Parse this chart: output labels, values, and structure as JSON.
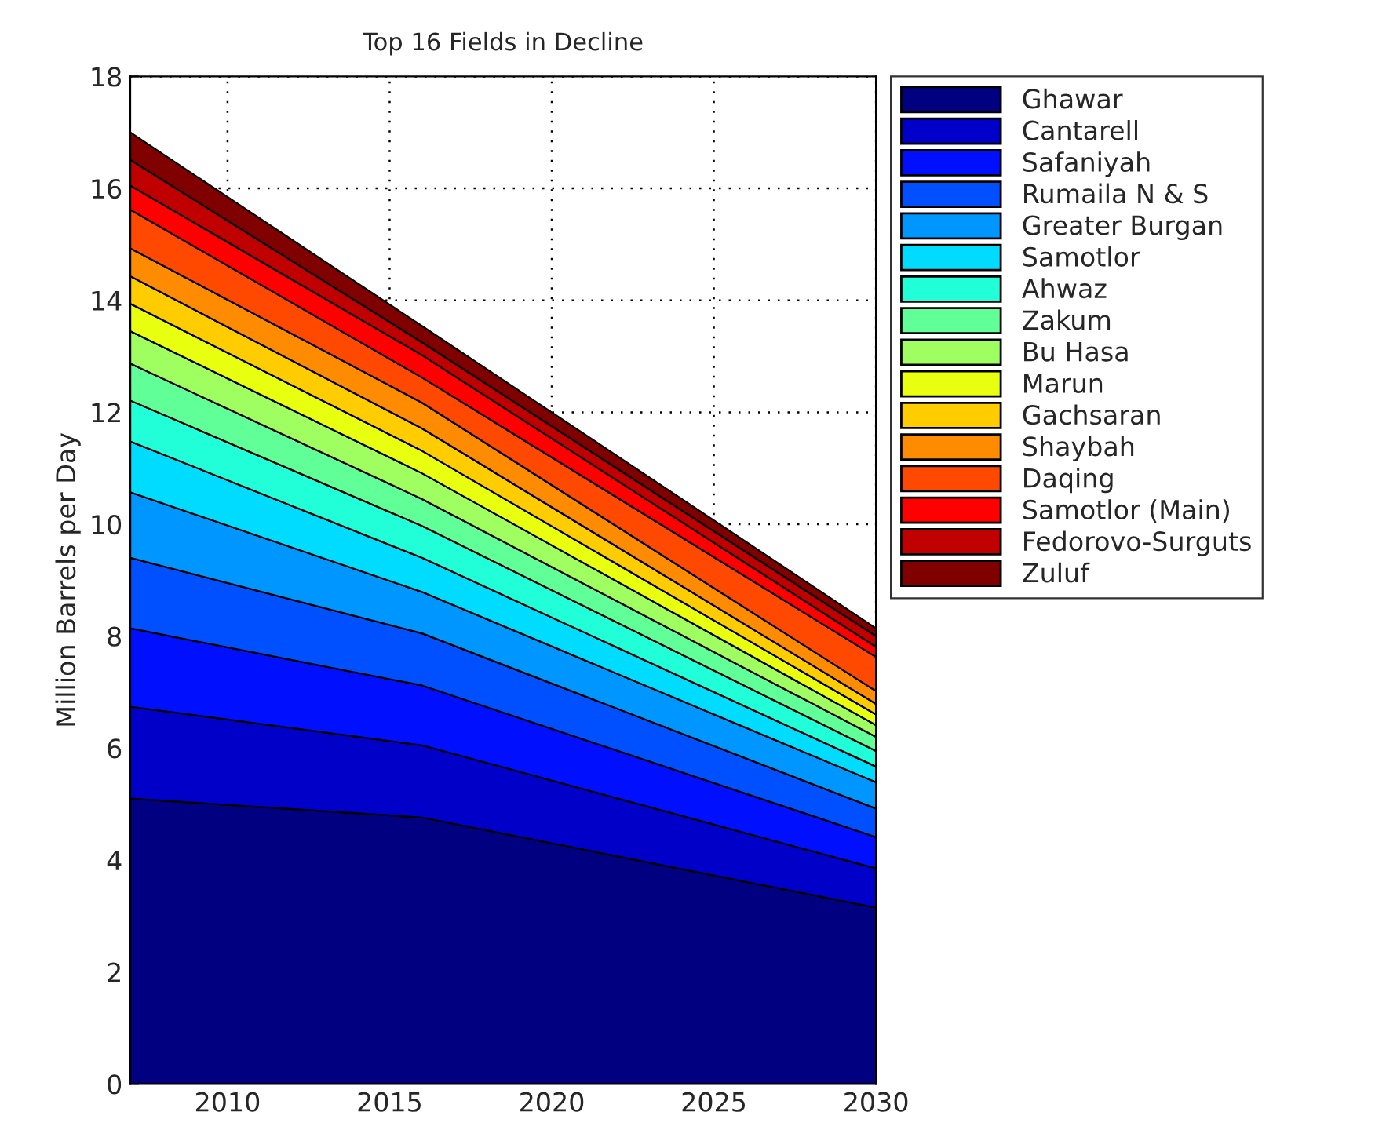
{
  "chart_data": {
    "type": "area",
    "stacked": true,
    "title": "Top 16 Fields in Decline",
    "ylabel": "Million Barrels per Day",
    "x": [
      2007,
      2016,
      2030
    ],
    "xlim": [
      2007,
      2030
    ],
    "xticks": [
      2010,
      2015,
      2020,
      2025,
      2030
    ],
    "ylim": [
      0,
      18
    ],
    "yticks": [
      0,
      2,
      4,
      6,
      8,
      10,
      12,
      14,
      16,
      18
    ],
    "grid": true,
    "legend": "top right",
    "series": [
      {
        "name": "Ghawar",
        "color": "#000080",
        "values": [
          5.1,
          4.76,
          3.15
        ]
      },
      {
        "name": "Cantarell",
        "color": "#0000c8",
        "values": [
          1.64,
          1.29,
          0.7
        ]
      },
      {
        "name": "Safaniyah",
        "color": "#0010ff",
        "values": [
          1.4,
          1.07,
          0.56
        ]
      },
      {
        "name": "Rumaila N & S",
        "color": "#0050ff",
        "values": [
          1.26,
          0.93,
          0.51
        ]
      },
      {
        "name": "Greater Burgan",
        "color": "#0096ff",
        "values": [
          1.17,
          0.74,
          0.47
        ]
      },
      {
        "name": "Samotlor",
        "color": "#00dcff",
        "values": [
          0.91,
          0.61,
          0.28
        ]
      },
      {
        "name": "Ahwaz",
        "color": "#20ffd8",
        "values": [
          0.73,
          0.57,
          0.28
        ]
      },
      {
        "name": "Zakum",
        "color": "#60ff98",
        "values": [
          0.66,
          0.48,
          0.25
        ]
      },
      {
        "name": "Bu Hasa",
        "color": "#a0ff60",
        "values": [
          0.58,
          0.46,
          0.21
        ]
      },
      {
        "name": "Marun",
        "color": "#e8ff10",
        "values": [
          0.49,
          0.4,
          0.19
        ]
      },
      {
        "name": "Gachsaran",
        "color": "#ffcc00",
        "values": [
          0.49,
          0.4,
          0.19
        ]
      },
      {
        "name": "Shaybah",
        "color": "#ff8c00",
        "values": [
          0.5,
          0.46,
          0.23
        ]
      },
      {
        "name": "Daqing",
        "color": "#ff4800",
        "values": [
          0.69,
          0.45,
          0.61
        ]
      },
      {
        "name": "Samotlor (Main)",
        "color": "#ff0000",
        "values": [
          0.43,
          0.4,
          0.18
        ]
      },
      {
        "name": "Fedorovo-Surguts",
        "color": "#c00000",
        "values": [
          0.46,
          0.23,
          0.19
        ]
      },
      {
        "name": "Zuluf",
        "color": "#800000",
        "values": [
          0.49,
          0.29,
          0.14
        ]
      }
    ]
  }
}
